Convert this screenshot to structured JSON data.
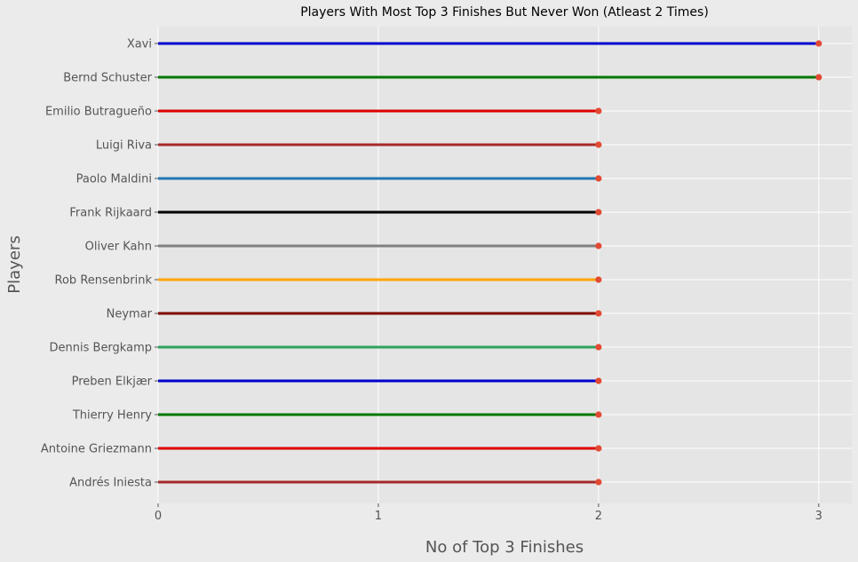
{
  "chart_data": {
    "type": "lollipop",
    "title": "Players With Most Top 3 Finishes But Never Won (Atleast 2 Times)",
    "xlabel": "No of Top 3 Finishes",
    "ylabel": "Players",
    "xlim": [
      0,
      3.15
    ],
    "xticks": [
      0,
      1,
      2,
      3
    ],
    "grid": true,
    "marker_color": "#e24a33",
    "plot_background": "#e5e5e5",
    "figure_background": "#ebebeb",
    "categories": [
      "Xavi",
      "Bernd Schuster",
      "Emilio Butragueño",
      "Luigi Riva",
      "Paolo Maldini",
      "Frank Rijkaard",
      "Oliver Kahn",
      "Rob Rensenbrink",
      "Neymar",
      "Dennis Bergkamp",
      "Preben Elkjær",
      "Thierry Henry",
      "Antoine Griezmann",
      "Andrés Iniesta"
    ],
    "values": [
      3,
      3,
      2,
      2,
      2,
      2,
      2,
      2,
      2,
      2,
      2,
      2,
      2,
      2
    ],
    "stem_colors": [
      "#0000cc",
      "#007700",
      "#dd0000",
      "#a52a2a",
      "#1f77b4",
      "#000000",
      "#808080",
      "#ffa500",
      "#800000",
      "#2ca25f",
      "#0000cc",
      "#007700",
      "#dd0000",
      "#a52a2a"
    ]
  }
}
